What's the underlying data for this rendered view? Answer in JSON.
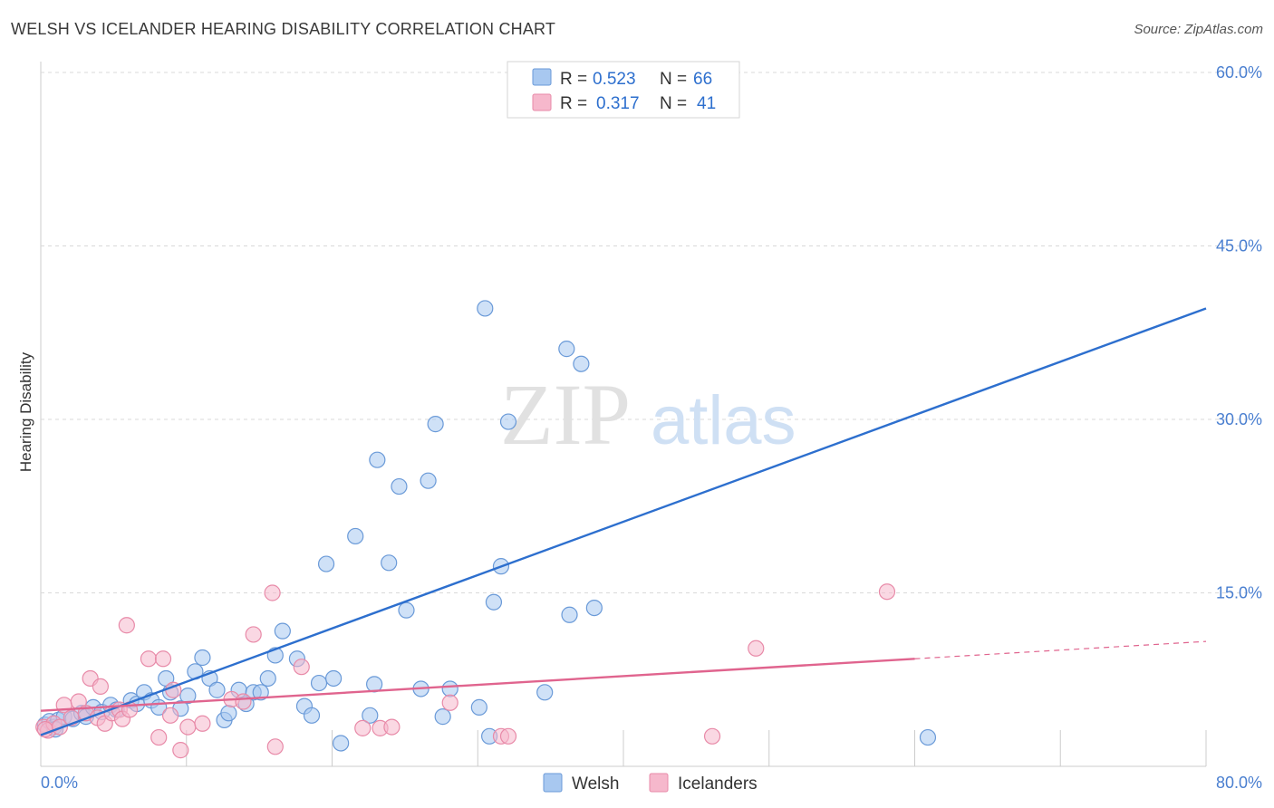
{
  "header": {
    "title": "WELSH VS ICELANDER HEARING DISABILITY CORRELATION CHART",
    "source": "Source: ZipAtlas.com"
  },
  "watermark": {
    "zip": "ZIP",
    "atlas": "atlas"
  },
  "colors": {
    "welsh_fill": "#a8c8f0",
    "welsh_stroke": "#6a9ad8",
    "welsh_line": "#2d6fce",
    "ice_fill": "#f6b8cc",
    "ice_stroke": "#e88aa8",
    "ice_line": "#e0648e",
    "tick": "#4a7fd0",
    "grid": "#d9d9d9"
  },
  "legend": {
    "welsh": {
      "r_label": "R =",
      "r_value": "0.523",
      "n_label": "N =",
      "n_value": "66"
    },
    "icelanders": {
      "r_label": "R =",
      "r_value": "0.317",
      "n_label": "N =",
      "n_value": "41"
    }
  },
  "chart_data": {
    "type": "scatter",
    "title": "WELSH VS ICELANDER HEARING DISABILITY CORRELATION CHART",
    "xlabel": "",
    "ylabel": "Hearing Disability",
    "xlim": [
      0,
      80
    ],
    "ylim": [
      0,
      60
    ],
    "x_tick_labels": [
      "0.0%",
      "80.0%"
    ],
    "y_ticks": [
      15,
      30,
      45,
      60
    ],
    "y_tick_labels": [
      "15.0%",
      "30.0%",
      "45.0%",
      "60.0%"
    ],
    "legend_position": "bottom-center",
    "series": [
      {
        "name": "Welsh",
        "points": [
          [
            0.3,
            3.6
          ],
          [
            0.6,
            3.9
          ],
          [
            0.9,
            3.4
          ],
          [
            1.2,
            4.0
          ],
          [
            1.6,
            4.3
          ],
          [
            2.2,
            4.1
          ],
          [
            2.8,
            4.6
          ],
          [
            3.1,
            4.3
          ],
          [
            3.6,
            5.1
          ],
          [
            4.2,
            4.7
          ],
          [
            4.8,
            5.3
          ],
          [
            5.2,
            4.9
          ],
          [
            6.2,
            5.7
          ],
          [
            6.6,
            5.4
          ],
          [
            7.1,
            6.4
          ],
          [
            7.6,
            5.7
          ],
          [
            8.1,
            5.1
          ],
          [
            8.6,
            7.6
          ],
          [
            8.9,
            6.4
          ],
          [
            9.6,
            5.0
          ],
          [
            10.1,
            6.1
          ],
          [
            10.6,
            8.2
          ],
          [
            11.1,
            9.4
          ],
          [
            11.6,
            7.6
          ],
          [
            12.1,
            6.6
          ],
          [
            12.6,
            4.0
          ],
          [
            12.9,
            4.6
          ],
          [
            13.6,
            6.6
          ],
          [
            14.1,
            5.4
          ],
          [
            14.6,
            6.4
          ],
          [
            15.1,
            6.4
          ],
          [
            15.6,
            7.6
          ],
          [
            16.1,
            9.6
          ],
          [
            16.6,
            11.7
          ],
          [
            17.6,
            9.3
          ],
          [
            18.1,
            5.2
          ],
          [
            18.6,
            4.4
          ],
          [
            19.1,
            7.2
          ],
          [
            19.6,
            17.5
          ],
          [
            20.1,
            7.6
          ],
          [
            20.6,
            2.0
          ],
          [
            21.6,
            19.9
          ],
          [
            22.6,
            4.4
          ],
          [
            22.9,
            7.1
          ],
          [
            23.1,
            26.5
          ],
          [
            23.9,
            17.6
          ],
          [
            24.6,
            24.2
          ],
          [
            25.1,
            13.5
          ],
          [
            26.1,
            6.7
          ],
          [
            26.6,
            24.7
          ],
          [
            27.1,
            29.6
          ],
          [
            27.6,
            4.3
          ],
          [
            28.1,
            6.7
          ],
          [
            30.1,
            5.1
          ],
          [
            30.5,
            39.6
          ],
          [
            30.8,
            2.6
          ],
          [
            31.1,
            14.2
          ],
          [
            31.6,
            17.3
          ],
          [
            32.1,
            29.8
          ],
          [
            34.6,
            6.4
          ],
          [
            36.1,
            36.1
          ],
          [
            36.3,
            13.1
          ],
          [
            37.1,
            34.8
          ],
          [
            38.0,
            13.7
          ],
          [
            60.9,
            2.5
          ],
          [
            1.0,
            3.2
          ]
        ]
      },
      {
        "name": "Icelanders",
        "points": [
          [
            0.2,
            3.4
          ],
          [
            0.5,
            3.1
          ],
          [
            0.9,
            3.7
          ],
          [
            1.3,
            3.4
          ],
          [
            1.6,
            5.3
          ],
          [
            2.1,
            4.2
          ],
          [
            2.6,
            5.6
          ],
          [
            3.1,
            4.6
          ],
          [
            3.4,
            7.6
          ],
          [
            3.9,
            4.2
          ],
          [
            4.1,
            6.9
          ],
          [
            4.4,
            3.7
          ],
          [
            4.9,
            4.6
          ],
          [
            5.4,
            4.9
          ],
          [
            5.6,
            4.1
          ],
          [
            5.9,
            12.2
          ],
          [
            6.1,
            4.9
          ],
          [
            7.4,
            9.3
          ],
          [
            8.1,
            2.5
          ],
          [
            8.4,
            9.3
          ],
          [
            8.9,
            4.4
          ],
          [
            9.1,
            6.6
          ],
          [
            9.6,
            1.4
          ],
          [
            10.1,
            3.4
          ],
          [
            11.1,
            3.7
          ],
          [
            13.1,
            5.8
          ],
          [
            13.9,
            5.6
          ],
          [
            14.6,
            11.4
          ],
          [
            15.9,
            15.0
          ],
          [
            16.1,
            1.7
          ],
          [
            17.9,
            8.6
          ],
          [
            22.1,
            3.3
          ],
          [
            23.3,
            3.3
          ],
          [
            24.1,
            3.4
          ],
          [
            28.1,
            5.5
          ],
          [
            31.6,
            2.6
          ],
          [
            32.1,
            2.6
          ],
          [
            46.1,
            2.6
          ],
          [
            49.1,
            10.2
          ],
          [
            58.1,
            15.1
          ],
          [
            0.3,
            3.2
          ]
        ]
      }
    ],
    "trendlines": [
      {
        "series": "Welsh",
        "x": [
          0,
          80
        ],
        "y": [
          2.7,
          39.6
        ]
      },
      {
        "series": "Icelanders",
        "x": [
          0,
          60
        ],
        "y": [
          4.8,
          9.3
        ]
      },
      {
        "series": "Icelanders",
        "dashed": true,
        "x": [
          60,
          80
        ],
        "y": [
          9.3,
          10.8
        ]
      }
    ]
  },
  "bottom_legend": {
    "welsh": "Welsh",
    "icelanders": "Icelanders"
  }
}
